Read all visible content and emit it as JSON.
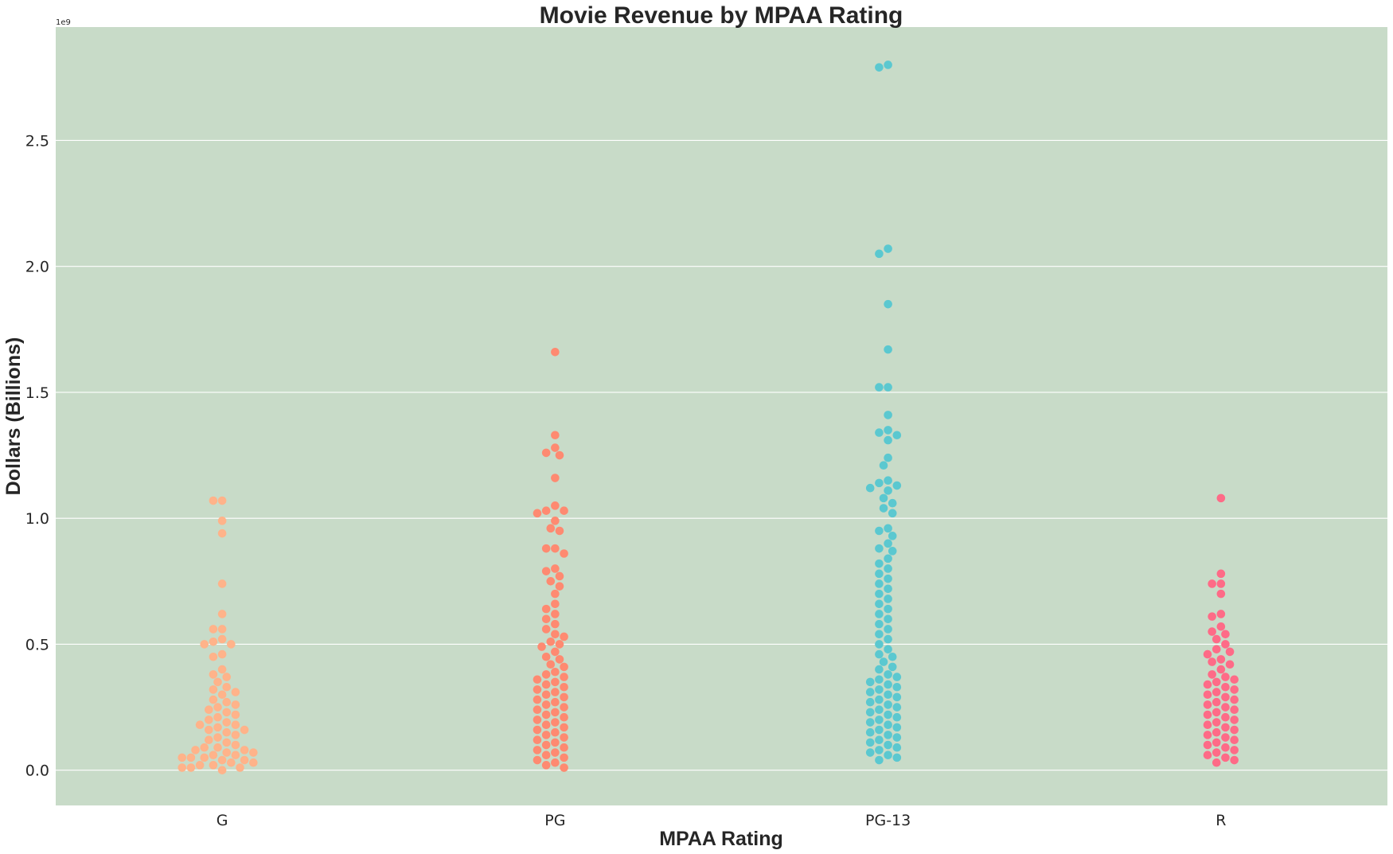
{
  "chart_data": {
    "type": "scatter",
    "subtype": "swarm",
    "title": "Movie Revenue by MPAA Rating",
    "xlabel": "MPAA Rating",
    "ylabel": "Dollars (Billions)",
    "y_offset_label": "1e9",
    "ylim": [
      -0.14,
      2.95
    ],
    "yticks": [
      0.0,
      0.5,
      1.0,
      1.5,
      2.0,
      2.5
    ],
    "ytick_labels": [
      "0.0",
      "0.5",
      "1.0",
      "1.5",
      "2.0",
      "2.5"
    ],
    "grid": true,
    "background": "#c8dbc8",
    "categories": [
      "G",
      "PG",
      "PG-13",
      "R"
    ],
    "series": [
      {
        "category": "G",
        "color": "#ffb38a",
        "values": [
          1.07,
          1.07,
          0.99,
          0.94,
          0.74,
          0.62,
          0.56,
          0.56,
          0.52,
          0.51,
          0.5,
          0.5,
          0.46,
          0.45,
          0.4,
          0.38,
          0.37,
          0.35,
          0.33,
          0.32,
          0.31,
          0.3,
          0.28,
          0.27,
          0.26,
          0.25,
          0.24,
          0.23,
          0.22,
          0.21,
          0.2,
          0.19,
          0.18,
          0.18,
          0.17,
          0.16,
          0.16,
          0.15,
          0.14,
          0.13,
          0.12,
          0.11,
          0.1,
          0.09,
          0.09,
          0.08,
          0.08,
          0.07,
          0.07,
          0.06,
          0.06,
          0.05,
          0.05,
          0.05,
          0.04,
          0.04,
          0.03,
          0.03,
          0.02,
          0.02,
          0.01,
          0.01,
          0.01,
          0.0
        ]
      },
      {
        "category": "PG",
        "color": "#fe8a71",
        "values": [
          1.66,
          1.33,
          1.28,
          1.26,
          1.25,
          1.16,
          1.05,
          1.03,
          1.03,
          1.02,
          0.99,
          0.96,
          0.95,
          0.88,
          0.88,
          0.86,
          0.8,
          0.79,
          0.77,
          0.75,
          0.73,
          0.7,
          0.66,
          0.64,
          0.62,
          0.6,
          0.58,
          0.56,
          0.54,
          0.53,
          0.51,
          0.5,
          0.49,
          0.47,
          0.45,
          0.44,
          0.42,
          0.41,
          0.39,
          0.38,
          0.37,
          0.36,
          0.35,
          0.34,
          0.33,
          0.32,
          0.31,
          0.3,
          0.29,
          0.28,
          0.27,
          0.26,
          0.25,
          0.24,
          0.23,
          0.22,
          0.21,
          0.2,
          0.19,
          0.18,
          0.17,
          0.16,
          0.15,
          0.14,
          0.13,
          0.12,
          0.11,
          0.1,
          0.09,
          0.08,
          0.07,
          0.06,
          0.05,
          0.04,
          0.03,
          0.02,
          0.01
        ]
      },
      {
        "category": "PG-13",
        "color": "#5bc8d0",
        "values": [
          2.8,
          2.79,
          2.07,
          2.05,
          1.85,
          1.67,
          1.52,
          1.52,
          1.41,
          1.35,
          1.34,
          1.33,
          1.31,
          1.24,
          1.21,
          1.15,
          1.14,
          1.13,
          1.12,
          1.11,
          1.08,
          1.06,
          1.04,
          1.02,
          0.96,
          0.95,
          0.93,
          0.9,
          0.88,
          0.87,
          0.84,
          0.82,
          0.8,
          0.78,
          0.76,
          0.74,
          0.72,
          0.7,
          0.68,
          0.66,
          0.64,
          0.62,
          0.6,
          0.58,
          0.56,
          0.54,
          0.52,
          0.5,
          0.48,
          0.46,
          0.45,
          0.43,
          0.41,
          0.4,
          0.38,
          0.37,
          0.36,
          0.35,
          0.34,
          0.33,
          0.32,
          0.31,
          0.3,
          0.29,
          0.28,
          0.27,
          0.26,
          0.25,
          0.24,
          0.23,
          0.22,
          0.21,
          0.2,
          0.19,
          0.18,
          0.17,
          0.16,
          0.15,
          0.14,
          0.13,
          0.12,
          0.11,
          0.1,
          0.09,
          0.08,
          0.07,
          0.06,
          0.05,
          0.04
        ]
      },
      {
        "category": "R",
        "color": "#fe6b87",
        "values": [
          1.08,
          0.78,
          0.74,
          0.74,
          0.7,
          0.62,
          0.61,
          0.57,
          0.55,
          0.54,
          0.52,
          0.5,
          0.48,
          0.47,
          0.46,
          0.44,
          0.43,
          0.42,
          0.4,
          0.38,
          0.37,
          0.36,
          0.35,
          0.34,
          0.33,
          0.32,
          0.31,
          0.3,
          0.29,
          0.28,
          0.27,
          0.26,
          0.25,
          0.24,
          0.23,
          0.22,
          0.21,
          0.2,
          0.19,
          0.18,
          0.17,
          0.16,
          0.15,
          0.14,
          0.13,
          0.12,
          0.11,
          0.1,
          0.09,
          0.08,
          0.07,
          0.06,
          0.05,
          0.04,
          0.03
        ]
      }
    ]
  }
}
